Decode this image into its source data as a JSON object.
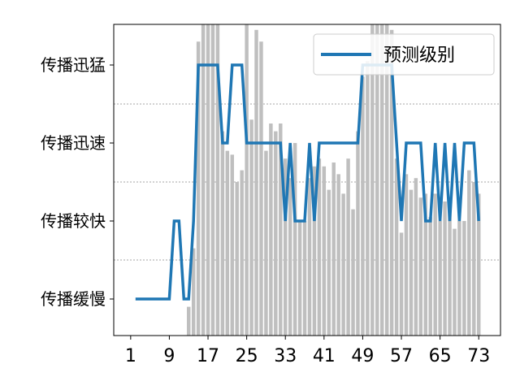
{
  "chart_data": {
    "type": "bar+line",
    "x_ticks": [
      "1",
      "9",
      "17",
      "25",
      "33",
      "41",
      "49",
      "57",
      "65",
      "73"
    ],
    "y_categories": [
      "传播缓慢",
      "传播较快",
      "传播迅速",
      "传播迅猛"
    ],
    "xlim": [
      -2.5,
      77.5
    ],
    "bar_color": "#bfbfbf",
    "line_color": "#1f77b4",
    "grid": "horizontal dashed at category boundaries",
    "legend": {
      "label": "预测级别",
      "placement": "top-right"
    },
    "bars": {
      "x": [
        13,
        14,
        15,
        16,
        17,
        18,
        19,
        20,
        21,
        22,
        23,
        24,
        25,
        26,
        27,
        28,
        29,
        30,
        31,
        32,
        33,
        34,
        35,
        36,
        37,
        38,
        39,
        40,
        41,
        42,
        43,
        44,
        45,
        46,
        47,
        48,
        49,
        50,
        51,
        52,
        53,
        54,
        55,
        56,
        57,
        58,
        59,
        60,
        61,
        62,
        63,
        64,
        65,
        66,
        67,
        68,
        69,
        70,
        71,
        72,
        73
      ],
      "values": [
        -0.1,
        0.65,
        3.3,
        4.0,
        4.0,
        3.75,
        3.65,
        2.15,
        1.9,
        1.85,
        1.5,
        1.65,
        3.55,
        2.3,
        3.45,
        3.3,
        1.9,
        2.25,
        2.15,
        2.25,
        1.8,
        1.55,
        2.0,
        1.0,
        1.0,
        1.55,
        1.7,
        1.8,
        1.7,
        1.4,
        1.75,
        1.6,
        1.35,
        1.8,
        1.15,
        2.15,
        2.85,
        3.05,
        3.75,
        3.6,
        3.75,
        3.55,
        3.45,
        1.8,
        0.85,
        1.6,
        1.4,
        1.55,
        1.3,
        1.35,
        1.05,
        1.35,
        1.0,
        1.25,
        1.3,
        0.9,
        1.0,
        1.0,
        1.65,
        1.5,
        1.35
      ]
    },
    "series": [
      {
        "name": "预测级别",
        "x": [
          2,
          3,
          4,
          5,
          6,
          7,
          8,
          9,
          10,
          11,
          12,
          13,
          14,
          15,
          16,
          17,
          18,
          19,
          20,
          21,
          22,
          23,
          24,
          25,
          26,
          27,
          28,
          29,
          30,
          31,
          32,
          33,
          34,
          35,
          36,
          37,
          38,
          39,
          40,
          41,
          42,
          43,
          44,
          45,
          46,
          47,
          48,
          49,
          50,
          51,
          52,
          53,
          54,
          55,
          56,
          57,
          58,
          59,
          60,
          61,
          62,
          63,
          64,
          65,
          66,
          67,
          68,
          69,
          70,
          71,
          72,
          73
        ],
        "values": [
          0,
          0,
          0,
          0,
          0,
          0,
          0,
          0,
          1,
          1,
          0,
          0,
          1,
          3,
          3,
          3,
          3,
          3,
          2,
          2,
          3,
          3,
          3,
          2,
          2,
          2,
          2,
          2,
          2,
          2,
          2,
          1,
          2,
          1,
          1,
          1,
          2,
          1,
          2,
          2,
          2,
          2,
          2,
          2,
          2,
          2,
          2,
          3,
          3,
          3,
          3,
          3,
          3,
          3,
          2,
          1,
          2,
          2,
          2,
          2,
          1,
          1,
          2,
          1,
          2,
          1,
          2,
          1,
          2,
          2,
          2,
          1
        ]
      }
    ]
  }
}
